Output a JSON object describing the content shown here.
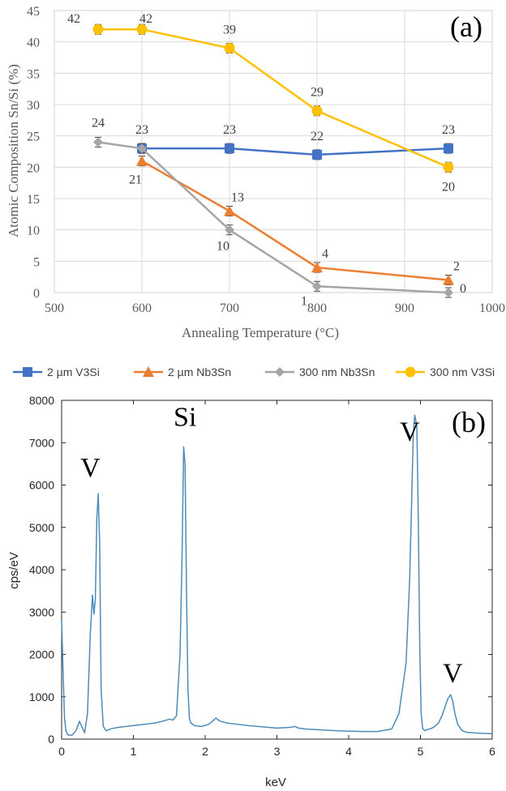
{
  "chart_data": [
    {
      "type": "line",
      "panel_label": "(a)",
      "xlabel": "Annealing Temperature (°C)",
      "ylabel": "Atomic Composition Sn/Si (%)",
      "xlim": [
        500,
        1000
      ],
      "ylim": [
        0,
        45
      ],
      "x_ticks": [
        500,
        600,
        700,
        800,
        900,
        1000
      ],
      "y_ticks": [
        0,
        5,
        10,
        15,
        20,
        25,
        30,
        35,
        40,
        45
      ],
      "grid": true,
      "legend_position": "bottom",
      "series": [
        {
          "name": "2 µm V3Si",
          "color": "#4472c4",
          "marker": "square",
          "x": [
            600,
            700,
            800,
            950
          ],
          "values": [
            23,
            23,
            22,
            23
          ],
          "labels": [
            "23",
            "23",
            "22",
            "23"
          ]
        },
        {
          "name": "2 µm Nb3Sn",
          "color": "#ed7d31",
          "marker": "triangle",
          "x": [
            600,
            700,
            800,
            950
          ],
          "values": [
            21,
            13,
            4,
            2
          ],
          "labels": [
            "21",
            "13",
            "4",
            "2"
          ]
        },
        {
          "name": "300 nm Nb3Sn",
          "color": "#a5a5a5",
          "marker": "diamond",
          "x": [
            550,
            600,
            700,
            800,
            950
          ],
          "values": [
            24,
            23,
            10,
            1,
            0
          ],
          "labels": [
            "24",
            "",
            "10",
            "1",
            "0"
          ]
        },
        {
          "name": "300 nm V3Si",
          "color": "#ffc000",
          "marker": "circle",
          "x": [
            550,
            600,
            700,
            800,
            950
          ],
          "values": [
            42,
            42,
            39,
            29,
            20
          ],
          "labels": [
            "42",
            "42",
            "39",
            "29",
            "20"
          ]
        }
      ]
    },
    {
      "type": "line",
      "panel_label": "(b)",
      "xlabel": "keV",
      "ylabel": "cps/eV",
      "xlim": [
        0,
        6
      ],
      "ylim": [
        0,
        8000
      ],
      "x_ticks": [
        0,
        1,
        2,
        3,
        4,
        5,
        6
      ],
      "y_ticks": [
        0,
        1000,
        2000,
        3000,
        4000,
        5000,
        6000,
        7000,
        8000
      ],
      "grid": false,
      "series": [
        {
          "name": "",
          "color": "#4e8bb8",
          "x": [
            0.0,
            0.02,
            0.04,
            0.06,
            0.08,
            0.1,
            0.15,
            0.2,
            0.25,
            0.28,
            0.32,
            0.36,
            0.4,
            0.43,
            0.45,
            0.47,
            0.49,
            0.51,
            0.53,
            0.55,
            0.58,
            0.62,
            0.7,
            0.8,
            0.9,
            1.0,
            1.1,
            1.2,
            1.3,
            1.4,
            1.5,
            1.55,
            1.6,
            1.65,
            1.68,
            1.7,
            1.72,
            1.74,
            1.76,
            1.78,
            1.8,
            1.85,
            1.95,
            2.05,
            2.1,
            2.15,
            2.2,
            2.3,
            2.4,
            2.6,
            2.8,
            3.0,
            3.2,
            3.25,
            3.3,
            3.4,
            3.6,
            3.8,
            4.0,
            4.2,
            4.4,
            4.6,
            4.7,
            4.8,
            4.85,
            4.88,
            4.9,
            4.92,
            4.95,
            4.97,
            4.99,
            5.01,
            5.03,
            5.06,
            5.1,
            5.15,
            5.2,
            5.25,
            5.3,
            5.35,
            5.38,
            5.42,
            5.45,
            5.48,
            5.52,
            5.58,
            5.65,
            5.8,
            6.0
          ],
          "values": [
            2800,
            1600,
            500,
            200,
            120,
            90,
            100,
            200,
            420,
            300,
            150,
            600,
            2500,
            3400,
            2950,
            3300,
            5200,
            5800,
            4600,
            1200,
            300,
            200,
            250,
            280,
            300,
            320,
            340,
            360,
            380,
            420,
            470,
            450,
            550,
            2000,
            4500,
            6900,
            6500,
            3500,
            1200,
            500,
            380,
            320,
            300,
            350,
            420,
            500,
            430,
            380,
            360,
            320,
            290,
            260,
            280,
            300,
            260,
            240,
            220,
            200,
            190,
            180,
            180,
            240,
            600,
            1800,
            3800,
            5800,
            7200,
            7650,
            7400,
            5200,
            2200,
            600,
            250,
            200,
            230,
            250,
            300,
            380,
            550,
            800,
            950,
            1050,
            900,
            600,
            350,
            200,
            160,
            140,
            130
          ]
        }
      ],
      "annotations": [
        "V",
        "Si",
        "V",
        "V"
      ],
      "annotation_positions": [
        [
          0.4,
          6200
        ],
        [
          1.72,
          7400
        ],
        [
          4.85,
          7050
        ],
        [
          5.45,
          1350
        ]
      ]
    }
  ],
  "legend_items": [
    "2 µm V3Si",
    "2 µm Nb3Sn",
    "300 nm Nb3Sn",
    "300 nm V3Si"
  ]
}
